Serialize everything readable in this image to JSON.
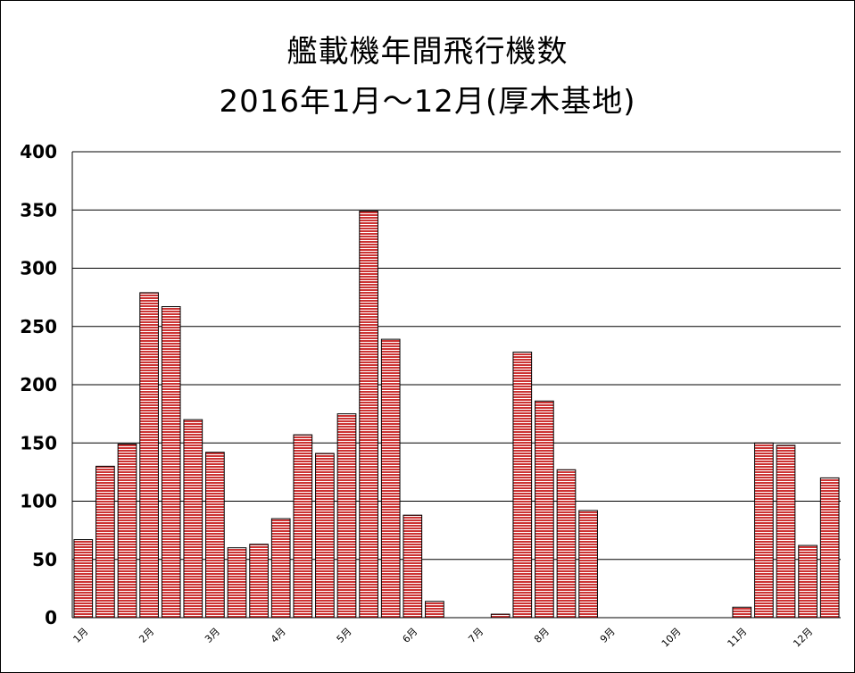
{
  "chart_data": {
    "type": "bar",
    "title": "艦載機年間飛行機数",
    "subtitle": "2016年1月～12月(厚木基地)",
    "xlabel": "",
    "ylabel": "",
    "ylim": [
      0,
      400
    ],
    "yticks": [
      0,
      50,
      100,
      150,
      200,
      250,
      300,
      350,
      400
    ],
    "grid": true,
    "bar_color": "#cc3333",
    "x_tick_labels": [
      {
        "label": "1月",
        "index": 0
      },
      {
        "label": "2月",
        "index": 3
      },
      {
        "label": "3月",
        "index": 6
      },
      {
        "label": "4月",
        "index": 9
      },
      {
        "label": "5月",
        "index": 12
      },
      {
        "label": "6月",
        "index": 15
      },
      {
        "label": "7月",
        "index": 18
      },
      {
        "label": "8月",
        "index": 21
      },
      {
        "label": "9月",
        "index": 24
      },
      {
        "label": "10月",
        "index": 27
      },
      {
        "label": "11月",
        "index": 30
      },
      {
        "label": "12月",
        "index": 33
      }
    ],
    "values": [
      67,
      130,
      149,
      279,
      267,
      170,
      142,
      60,
      63,
      85,
      157,
      141,
      175,
      349,
      239,
      88,
      14,
      0,
      0,
      3,
      228,
      186,
      127,
      92,
      0,
      0,
      0,
      0,
      0,
      0,
      9,
      150,
      148,
      62,
      120
    ]
  }
}
